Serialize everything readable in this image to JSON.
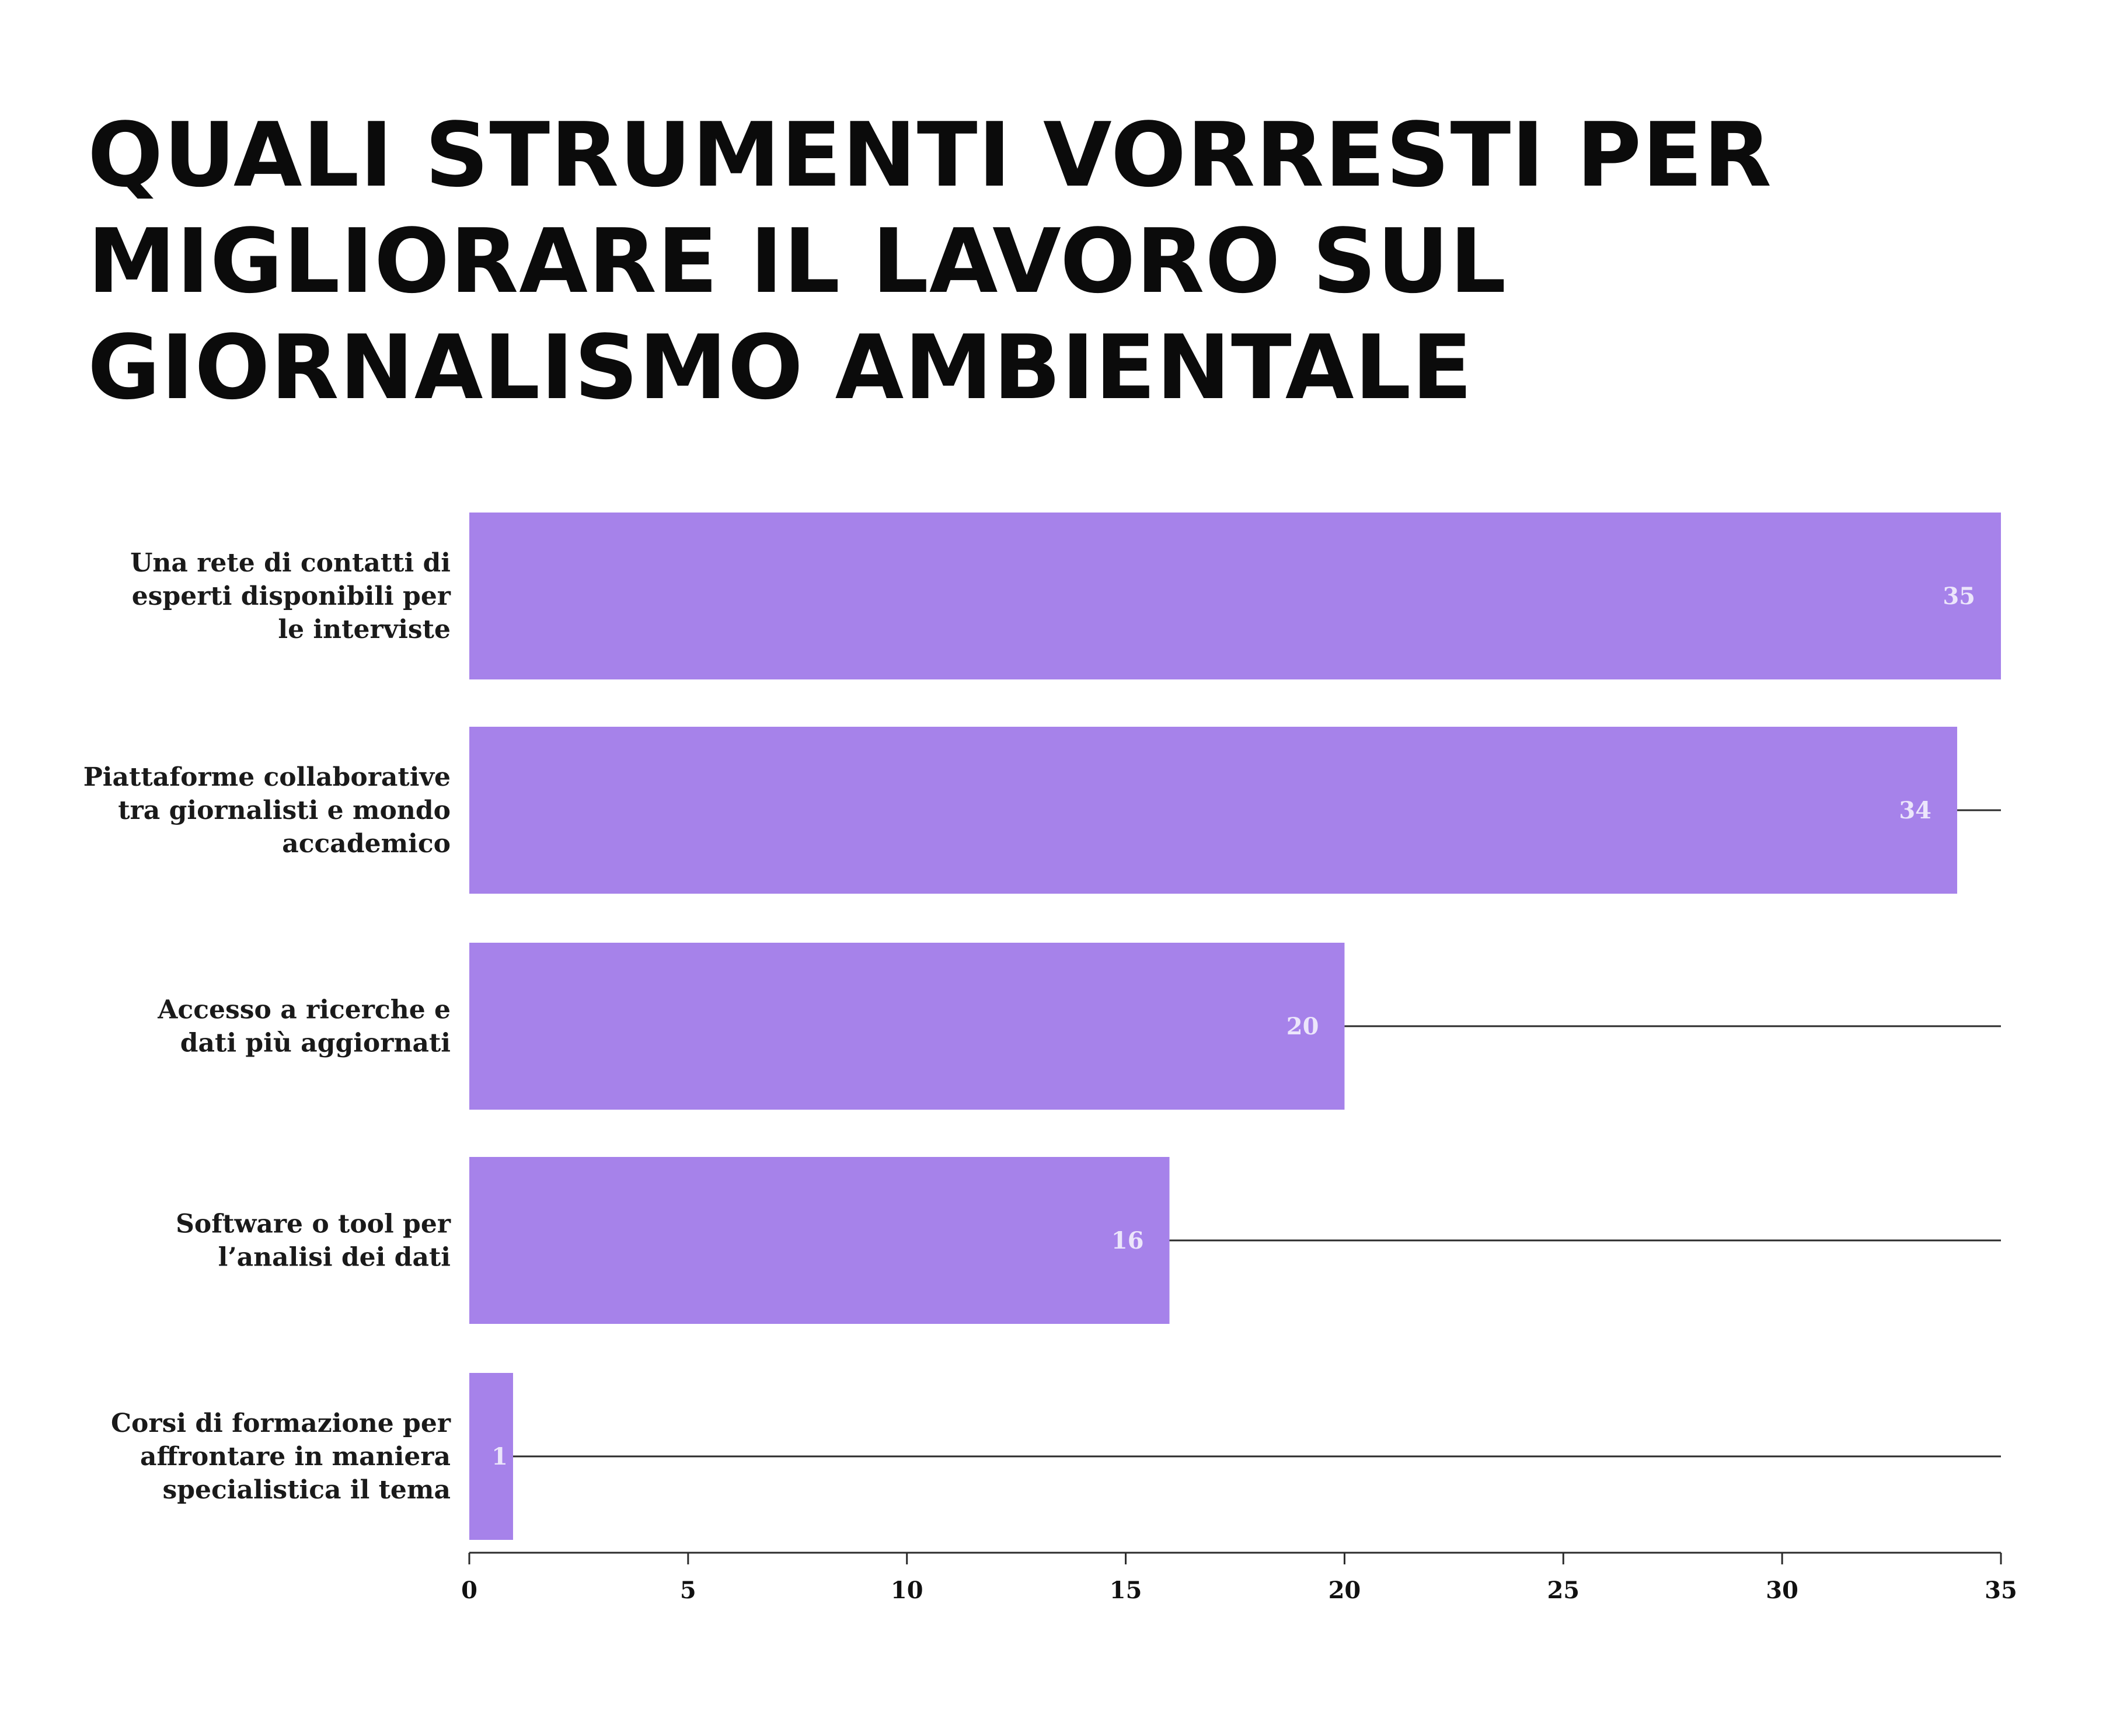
{
  "chart_data": {
    "type": "bar",
    "orientation": "horizontal",
    "title": "QUALI STRUMENTI VORRESTI PER MIGLIORARE IL LAVORO SUL GIORNALISMO AMBIENTALE",
    "categories": [
      [
        "Una rete di contatti di",
        "esperti disponibili per",
        "le interviste"
      ],
      [
        "Piattaforme collaborative",
        "tra giornalisti e mondo",
        "accademico"
      ],
      [
        "Accesso a ricerche e",
        "dati più aggiornati"
      ],
      [
        "Software o tool per",
        "l’analisi dei dati"
      ],
      [
        "Corsi di formazione per",
        "affrontare in maniera",
        "specialistica il tema"
      ]
    ],
    "values": [
      35,
      34,
      20,
      16,
      1
    ],
    "value_labels": [
      "35",
      "34",
      "20",
      "16",
      "1"
    ],
    "xlim": [
      0,
      35
    ],
    "xticks": [
      "0",
      "5",
      "10",
      "15",
      "20",
      "25",
      "30",
      "35"
    ],
    "xlabel": "",
    "ylabel": "",
    "grid": false,
    "colors": {
      "bar": "#a682ea",
      "value_label": "#ece6fb",
      "reference_line": "#2b2b2b",
      "axis": "#2b2b2b",
      "text": "#111111"
    }
  }
}
